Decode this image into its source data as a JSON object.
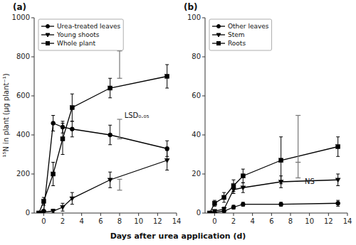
{
  "chart_data": [
    {
      "type": "line",
      "title": "(a)",
      "xlabel": "Days after urea application (d)",
      "ylabel": "¹⁵N in plant (μg plant⁻¹)",
      "x": [
        -0.5,
        0,
        1,
        2,
        3,
        7,
        13
      ],
      "series": [
        {
          "name": "Urea-treated leaves",
          "color": "#000000",
          "marker": "circle",
          "line_style": "solid",
          "values": [
            0,
            10,
            460,
            440,
            430,
            400,
            330
          ],
          "errors": [
            0,
            5,
            40,
            30,
            40,
            50,
            40
          ]
        },
        {
          "name": "Young shoots",
          "color": "#000000",
          "marker": "triangle-down",
          "line_style": "solid",
          "values": [
            0,
            5,
            10,
            30,
            75,
            170,
            270
          ],
          "errors": [
            0,
            5,
            10,
            20,
            30,
            40,
            50
          ]
        },
        {
          "name": "Whole plant",
          "color": "#000000",
          "marker": "square",
          "line_style": "solid",
          "values": [
            0,
            60,
            200,
            380,
            540,
            640,
            700
          ],
          "errors": [
            0,
            20,
            60,
            80,
            70,
            50,
            60
          ]
        }
      ],
      "lsd_bars": [
        {
          "x": 8.0,
          "y": 760,
          "half_height": 70
        },
        {
          "x": 8.0,
          "y": 430,
          "half_height": 50
        },
        {
          "x": 8.0,
          "y": 145,
          "half_height": 28
        }
      ],
      "annotations": [
        {
          "text": "LSD₀.₀₅",
          "x": 8.5,
          "y": 500
        }
      ],
      "xlim": [
        -1,
        14
      ],
      "xticks": [
        0,
        2,
        4,
        6,
        8,
        10,
        12,
        14
      ],
      "ylim": [
        0,
        1000
      ],
      "yticks": [
        0,
        200,
        400,
        600,
        800,
        1000
      ],
      "legend": "upper left",
      "grid": false
    },
    {
      "type": "line",
      "title": "(b)",
      "x": [
        -0.5,
        0,
        1,
        2,
        3,
        7,
        13
      ],
      "series": [
        {
          "name": "Other leaves",
          "color": "#000000",
          "marker": "circle",
          "line_style": "solid",
          "values": [
            0,
            0.3,
            1.0,
            3.0,
            4.5,
            4.5,
            5.0
          ],
          "errors": [
            0,
            0.2,
            0.5,
            1.0,
            1.0,
            1.0,
            1.5
          ]
        },
        {
          "name": "Stem",
          "color": "#000000",
          "marker": "triangle-down",
          "line_style": "solid",
          "values": [
            0,
            1.0,
            2.0,
            12.0,
            13.0,
            16.0,
            17.0
          ],
          "errors": [
            0,
            0.5,
            1.0,
            2.0,
            2.5,
            3.0,
            3.0
          ]
        },
        {
          "name": "Roots",
          "color": "#000000",
          "marker": "square",
          "line_style": "solid",
          "values": [
            0,
            5.0,
            8.0,
            14.0,
            19.0,
            27.0,
            34.0
          ],
          "errors": [
            0,
            1.5,
            2.5,
            3.0,
            3.5,
            12.0,
            5.0
          ]
        }
      ],
      "lsd_bars": [
        {
          "x": 8.8,
          "y": 38,
          "half_height": 12
        },
        {
          "x": 8.8,
          "y": 22,
          "half_height": 4
        }
      ],
      "annotations": [
        {
          "text": "NS",
          "x": 9.5,
          "y": 16
        }
      ],
      "xlim": [
        -1,
        14
      ],
      "xticks": [
        0,
        2,
        4,
        6,
        8,
        10,
        12,
        14
      ],
      "ylim": [
        0,
        100
      ],
      "yticks": [
        0,
        20,
        40,
        60,
        80,
        100
      ],
      "legend": "upper left",
      "grid": false
    }
  ]
}
